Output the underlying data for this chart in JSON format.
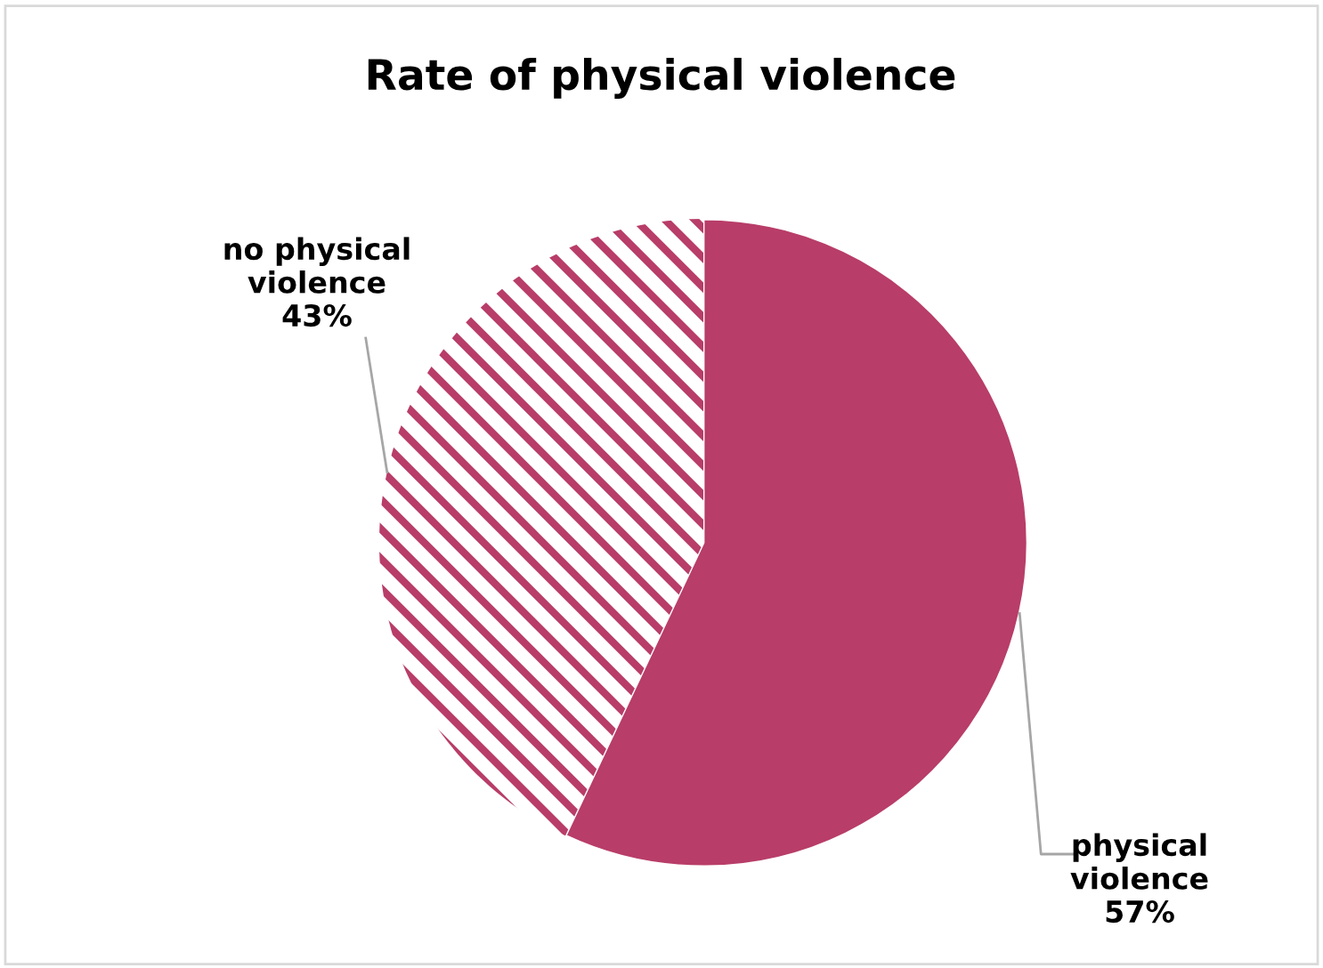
{
  "chart_data": {
    "type": "pie",
    "title": "Rate of physical violence",
    "categories": [
      "physical violence",
      "no physical violence"
    ],
    "values": [
      57,
      43
    ],
    "value_labels": [
      "57%",
      "43%"
    ],
    "colors": [
      "#b83d68",
      "#b83d68"
    ]
  }
}
